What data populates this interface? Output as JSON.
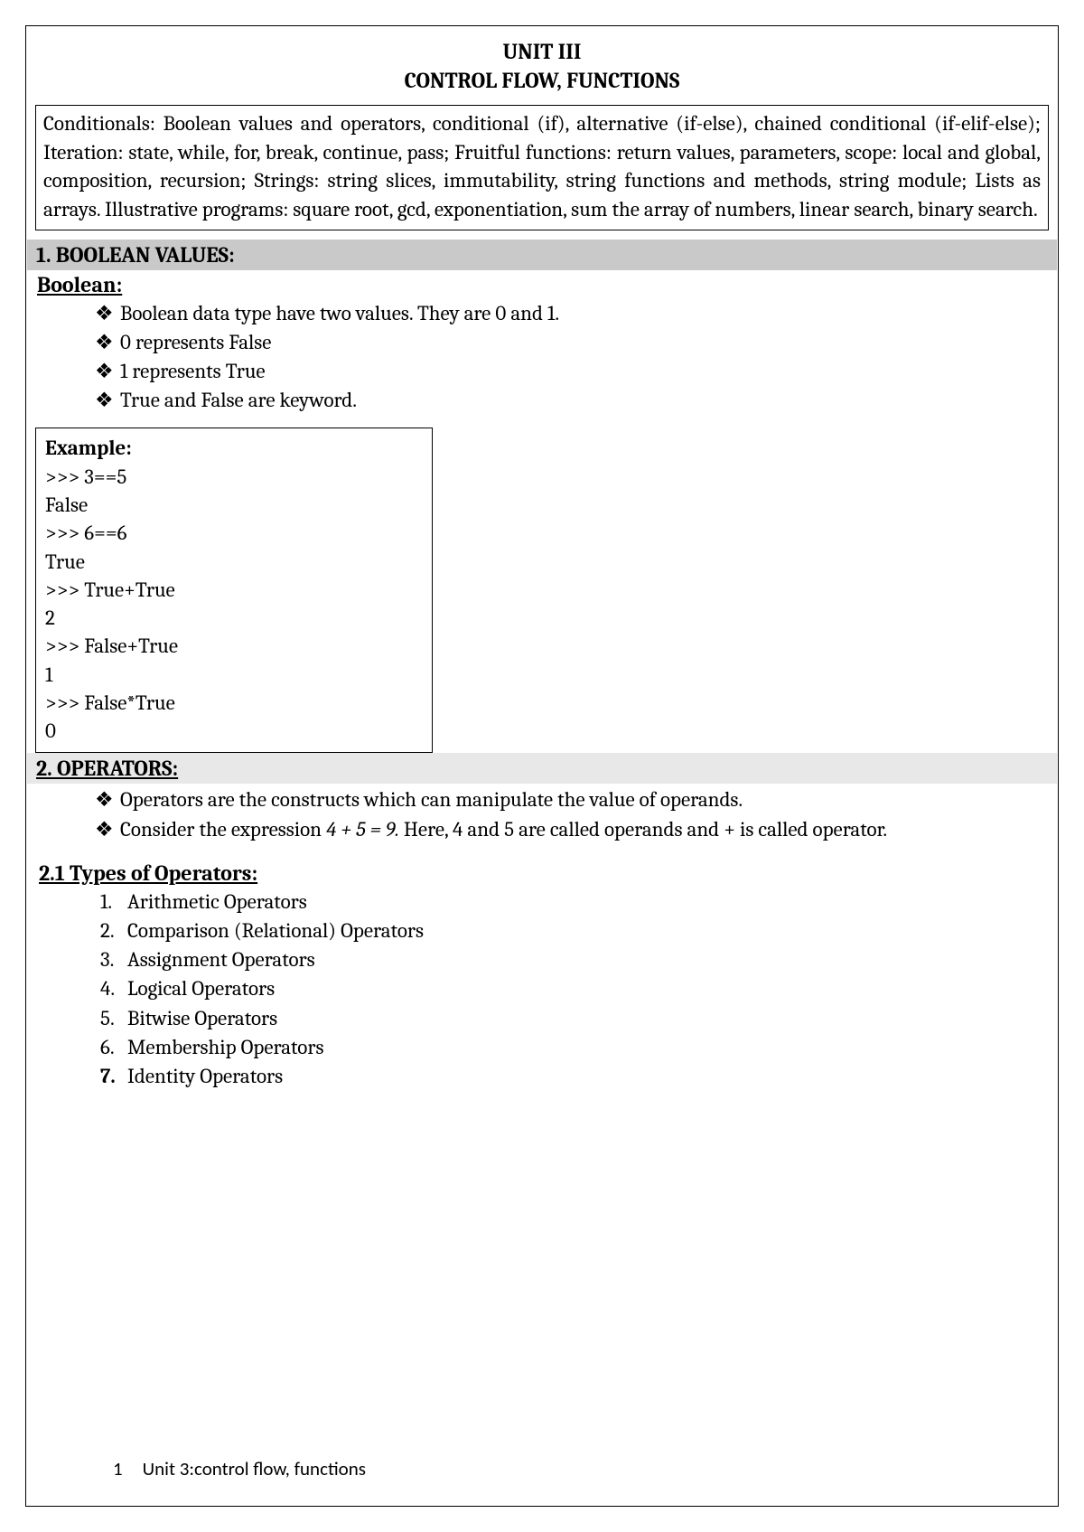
{
  "header": {
    "line1": "UNIT III",
    "line2": "CONTROL FLOW, FUNCTIONS"
  },
  "intro": "Conditionals: Boolean values and operators, conditional (if), alternative (if-else), chained conditional (if-elif-else); Iteration: state, while, for, break, continue, pass; Fruitful functions: return values, parameters, scope: local and global, composition, recursion; Strings:  string slices, immutability, string functions and methods, string module; Lists as arrays. Illustrative programs: square root, gcd, exponentiation, sum the array of numbers, linear search, binary search.",
  "section1": {
    "title": "1. BOOLEAN VALUES:",
    "subhead": "Boolean:",
    "bullets": [
      "Boolean data type have two values. They are  0 and 1.",
      "0 represents False",
      "1 represents True",
      "True and False are  keyword."
    ],
    "example": {
      "label": "Example:",
      "lines": [
        ">>> 3==5",
        "False",
        ">>> 6==6",
        "True",
        ">>> True+True",
        "2",
        ">>> False+True",
        "1",
        ">>> False*True",
        "0"
      ]
    }
  },
  "section2": {
    "title": "2. OPERATORS:",
    "bullets": [
      "Operators are the constructs which can manipulate the value of operands."
    ],
    "bullet2_prefix": "Consider the expression ",
    "bullet2_expr": "4 + 5 = 9.",
    "bullet2_suffix": " Here, 4 and 5 are called operands and + is called operator.",
    "subsection": {
      "title": "2.1 Types of Operators:",
      "items": [
        "Arithmetic Operators",
        "Comparison (Relational) Operators",
        "Assignment Operators",
        "Logical Operators",
        "Bitwise Operators",
        "Membership Operators",
        "Identity Operators"
      ]
    }
  },
  "footer": {
    "page": "1",
    "text": "Unit 3:control flow, functions"
  }
}
